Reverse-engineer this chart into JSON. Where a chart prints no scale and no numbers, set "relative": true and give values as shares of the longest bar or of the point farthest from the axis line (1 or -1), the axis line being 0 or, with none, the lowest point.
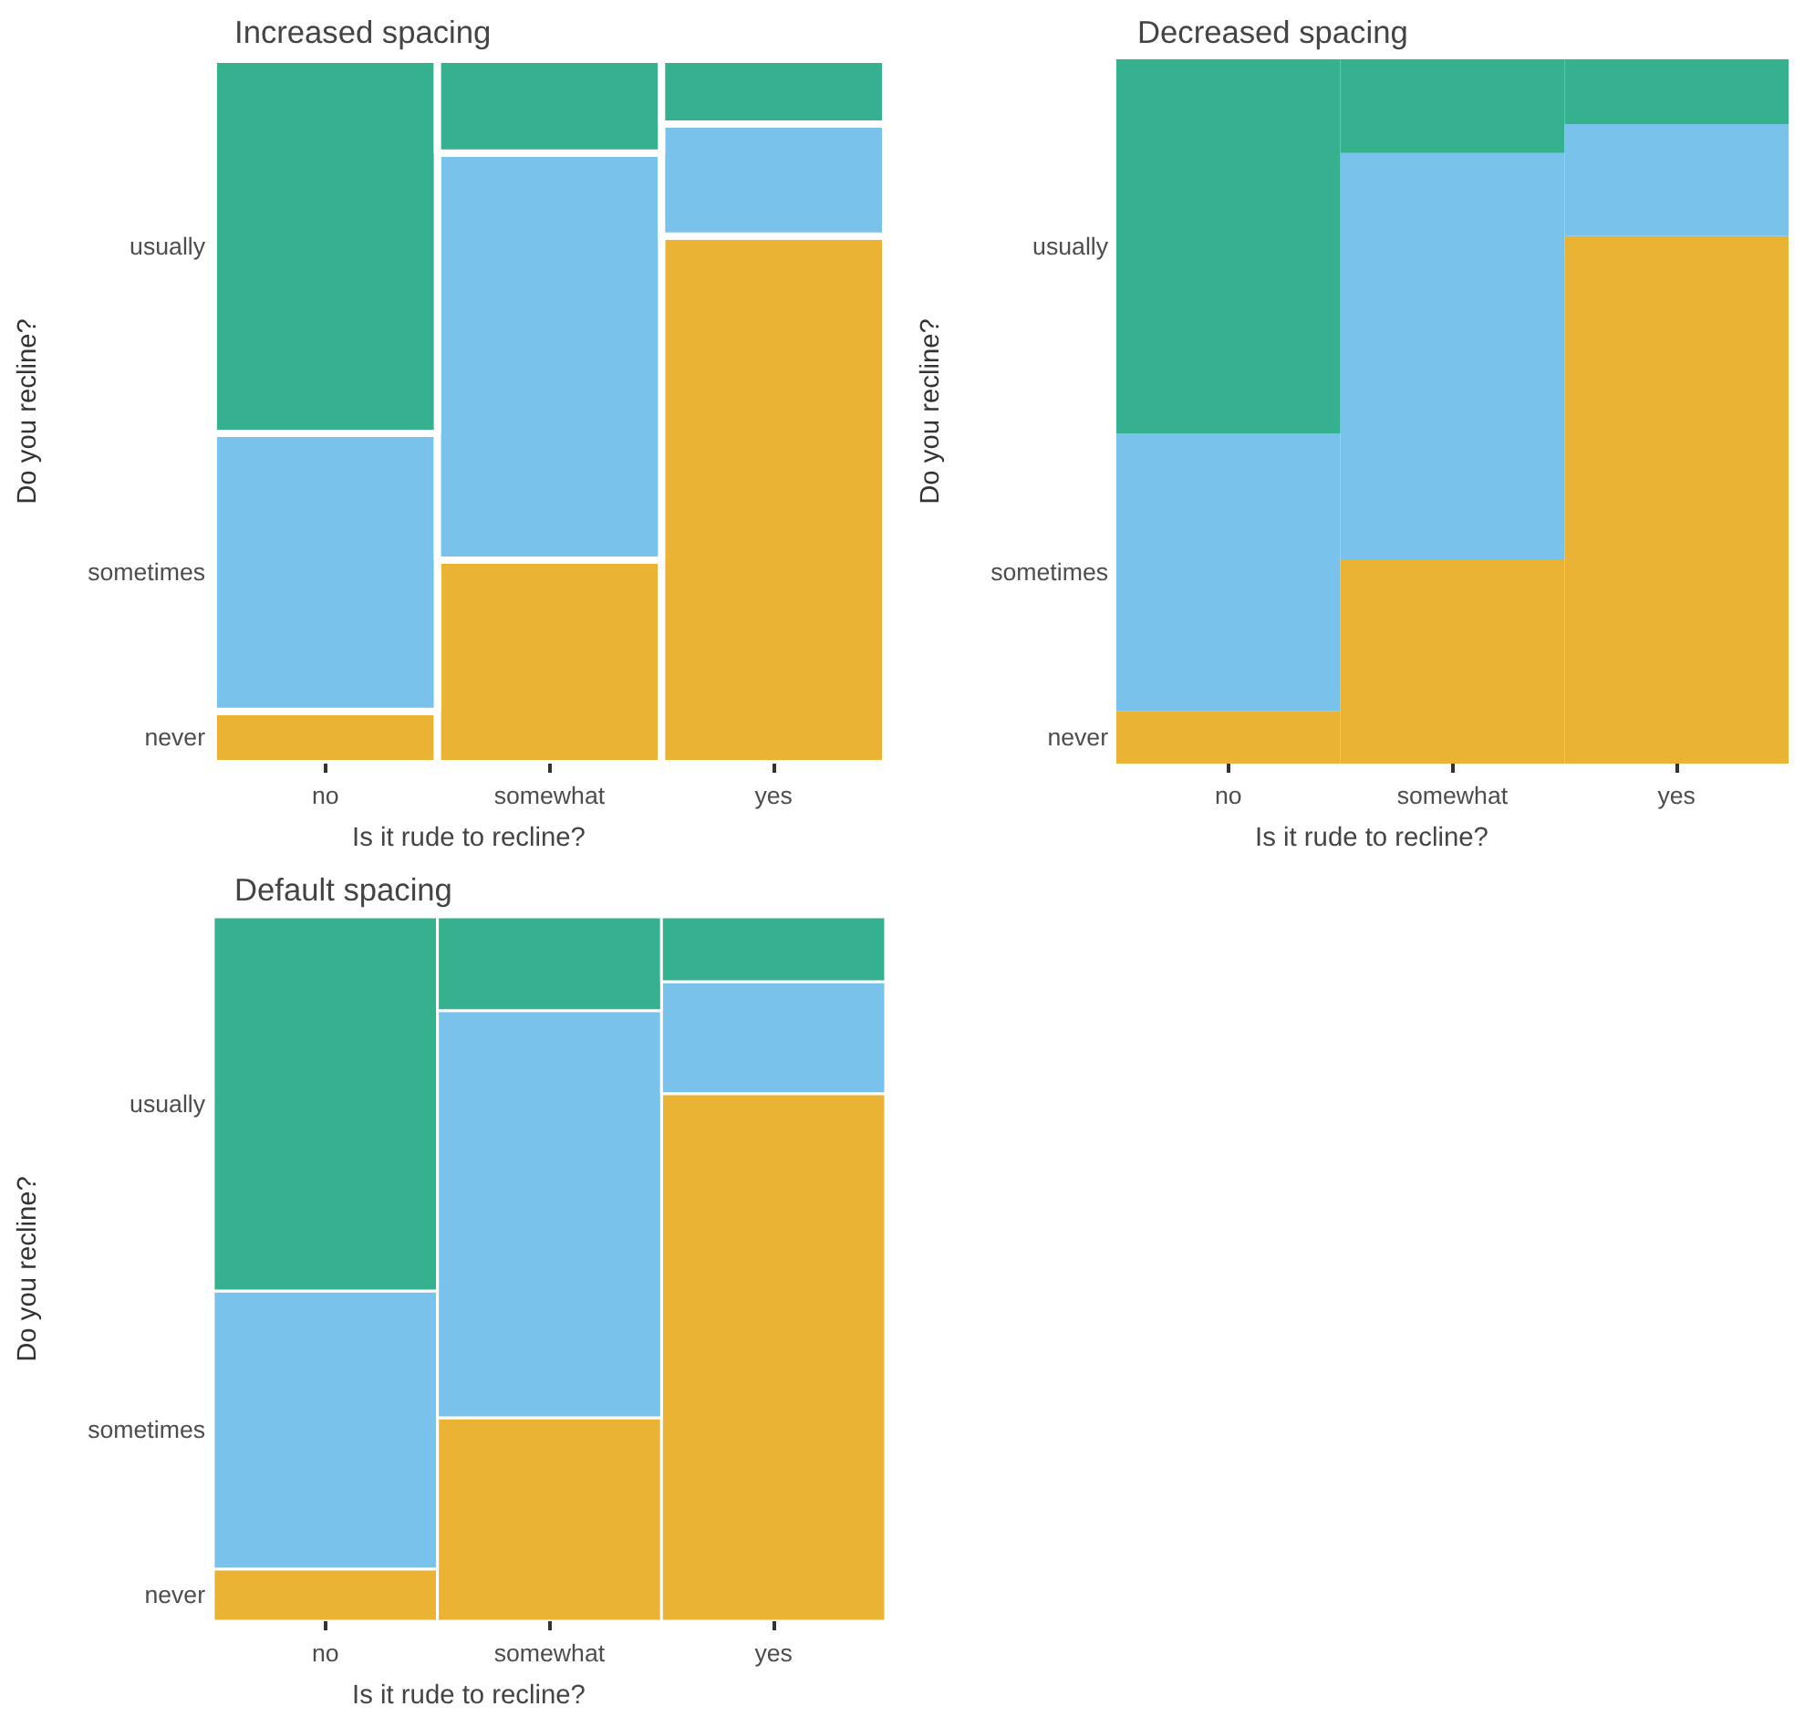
{
  "chart_data": [
    {
      "type": "bar",
      "title": "Increased spacing",
      "xlabel": "Is it rude to recline?",
      "ylabel": "Do you recline?",
      "stacked": true,
      "relative": true,
      "categories": [
        "no",
        "somewhat",
        "yes"
      ],
      "series": [
        {
          "name": "never",
          "color": "#ebb334",
          "values": [
            0.074,
            0.289,
            0.749
          ]
        },
        {
          "name": "sometimes",
          "color": "#79c2ec",
          "values": [
            0.395,
            0.578,
            0.159
          ]
        },
        {
          "name": "usually",
          "color": "#35b18f",
          "values": [
            0.531,
            0.133,
            0.092
          ]
        }
      ]
    },
    {
      "type": "bar",
      "title": "Decreased spacing",
      "xlabel": "Is it rude to recline?",
      "ylabel": "Do you recline?",
      "stacked": true,
      "relative": true,
      "categories": [
        "no",
        "somewhat",
        "yes"
      ],
      "series": [
        {
          "name": "never",
          "color": "#ebb334",
          "values": [
            0.074,
            0.289,
            0.749
          ]
        },
        {
          "name": "sometimes",
          "color": "#79c2ec",
          "values": [
            0.395,
            0.578,
            0.159
          ]
        },
        {
          "name": "usually",
          "color": "#35b18f",
          "values": [
            0.531,
            0.133,
            0.092
          ]
        }
      ]
    },
    {
      "type": "bar",
      "title": "Default spacing",
      "xlabel": "Is it rude to recline?",
      "ylabel": "Do you recline?",
      "stacked": true,
      "relative": true,
      "categories": [
        "no",
        "somewhat",
        "yes"
      ],
      "series": [
        {
          "name": "never",
          "color": "#ebb334",
          "values": [
            0.074,
            0.289,
            0.749
          ]
        },
        {
          "name": "sometimes",
          "color": "#79c2ec",
          "values": [
            0.395,
            0.578,
            0.159
          ]
        },
        {
          "name": "usually",
          "color": "#35b18f",
          "values": [
            0.531,
            0.133,
            0.092
          ]
        }
      ]
    }
  ]
}
